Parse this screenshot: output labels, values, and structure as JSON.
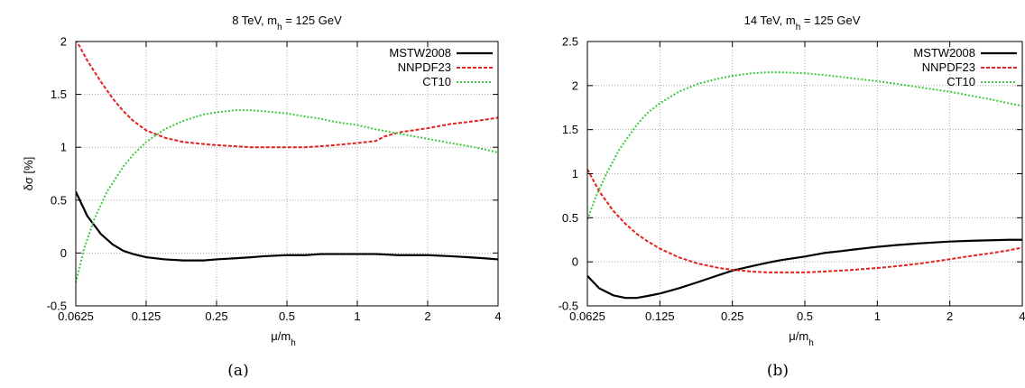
{
  "figures": [
    {
      "caption": "(a)",
      "chart_data": {
        "type": "line",
        "title": "8 TeV, m_h = 125 GeV",
        "title_main": "8 TeV, m",
        "title_sub": "h",
        "title_tail": " = 125 GeV",
        "xlabel_main": "μ/m",
        "xlabel_sub": "h",
        "ylabel": "δσ [%]",
        "x_scale": "log2",
        "xlim": [
          0.0625,
          4
        ],
        "ylim": [
          -0.5,
          2
        ],
        "x_ticks": [
          0.0625,
          0.125,
          0.25,
          0.5,
          1,
          2,
          4
        ],
        "x_tick_labels": [
          "0.0625",
          "0.125",
          "0.25",
          "0.5",
          "1",
          "2",
          "4"
        ],
        "y_ticks": [
          -0.5,
          0,
          0.5,
          1,
          1.5,
          2
        ],
        "y_tick_labels": [
          "-0.5",
          "0",
          "0.5",
          "1",
          "1.5",
          "2"
        ],
        "grid": true,
        "legend_position": "top-right",
        "series": [
          {
            "name": "MSTW2008",
            "color": "#000000",
            "dash": "solid",
            "x": [
              0.0625,
              0.07,
              0.08,
              0.09,
              0.1,
              0.11,
              0.125,
              0.15,
              0.18,
              0.22,
              0.25,
              0.3,
              0.35,
              0.4,
              0.5,
              0.6,
              0.7,
              0.8,
              1,
              1.2,
              1.5,
              2,
              2.5,
              3,
              3.5,
              4
            ],
            "y": [
              0.58,
              0.35,
              0.18,
              0.08,
              0.02,
              -0.01,
              -0.04,
              -0.06,
              -0.07,
              -0.07,
              -0.06,
              -0.05,
              -0.04,
              -0.03,
              -0.02,
              -0.02,
              -0.01,
              -0.01,
              -0.01,
              -0.01,
              -0.02,
              -0.02,
              -0.03,
              -0.04,
              -0.05,
              -0.06
            ]
          },
          {
            "name": "NNPDF23",
            "color": "#e3231f",
            "dash": "dashed",
            "x": [
              0.0625,
              0.07,
              0.08,
              0.09,
              0.1,
              0.11,
              0.125,
              0.15,
              0.18,
              0.22,
              0.25,
              0.3,
              0.35,
              0.4,
              0.5,
              0.6,
              0.7,
              0.8,
              1,
              1.2,
              1.3,
              1.5,
              2,
              2.5,
              3,
              3.5,
              4
            ],
            "y": [
              2.02,
              1.82,
              1.62,
              1.46,
              1.34,
              1.25,
              1.16,
              1.09,
              1.05,
              1.03,
              1.02,
              1.01,
              1.0,
              1.0,
              1.0,
              1.0,
              1.01,
              1.02,
              1.04,
              1.06,
              1.1,
              1.14,
              1.18,
              1.22,
              1.24,
              1.26,
              1.28
            ]
          },
          {
            "name": "CT10",
            "color": "#3ec93e",
            "dash": "dotted",
            "x": [
              0.0625,
              0.068,
              0.075,
              0.085,
              0.1,
              0.11,
              0.125,
              0.15,
              0.18,
              0.22,
              0.25,
              0.3,
              0.35,
              0.4,
              0.5,
              0.6,
              0.7,
              0.8,
              1,
              1.2,
              1.5,
              2,
              2.5,
              3,
              3.5,
              4
            ],
            "y": [
              -0.28,
              0.05,
              0.32,
              0.58,
              0.82,
              0.93,
              1.05,
              1.17,
              1.25,
              1.31,
              1.33,
              1.35,
              1.35,
              1.34,
              1.32,
              1.29,
              1.27,
              1.24,
              1.21,
              1.17,
              1.13,
              1.08,
              1.04,
              1.01,
              0.98,
              0.95
            ]
          }
        ]
      }
    },
    {
      "caption": "(b)",
      "chart_data": {
        "type": "line",
        "title": "14 TeV, m_h = 125 GeV",
        "title_main": "14 TeV, m",
        "title_sub": "h",
        "title_tail": " = 125 GeV",
        "xlabel_main": "μ/m",
        "xlabel_sub": "h",
        "ylabel": "",
        "x_scale": "log2",
        "xlim": [
          0.0625,
          4
        ],
        "ylim": [
          -0.5,
          2.5
        ],
        "x_ticks": [
          0.0625,
          0.125,
          0.25,
          0.5,
          1,
          2,
          4
        ],
        "x_tick_labels": [
          "0.0625",
          "0.125",
          "0.25",
          "0.5",
          "1",
          "2",
          "4"
        ],
        "y_ticks": [
          -0.5,
          0,
          0.5,
          1,
          1.5,
          2,
          2.5
        ],
        "y_tick_labels": [
          "-0.5",
          "0",
          "0.5",
          "1",
          "1.5",
          "2",
          "2.5"
        ],
        "grid": true,
        "legend_position": "top-right",
        "series": [
          {
            "name": "MSTW2008",
            "color": "#000000",
            "dash": "solid",
            "x": [
              0.0625,
              0.07,
              0.08,
              0.09,
              0.1,
              0.11,
              0.125,
              0.15,
              0.18,
              0.22,
              0.25,
              0.3,
              0.35,
              0.4,
              0.5,
              0.6,
              0.7,
              0.8,
              1,
              1.2,
              1.5,
              2,
              2.5,
              3,
              3.5,
              4
            ],
            "y": [
              -0.16,
              -0.3,
              -0.38,
              -0.41,
              -0.41,
              -0.39,
              -0.36,
              -0.3,
              -0.23,
              -0.15,
              -0.1,
              -0.05,
              -0.01,
              0.02,
              0.06,
              0.1,
              0.12,
              0.14,
              0.17,
              0.19,
              0.21,
              0.23,
              0.24,
              0.245,
              0.25,
              0.25
            ]
          },
          {
            "name": "NNPDF23",
            "color": "#e3231f",
            "dash": "dashed",
            "x": [
              0.0625,
              0.07,
              0.08,
              0.09,
              0.1,
              0.11,
              0.125,
              0.15,
              0.18,
              0.22,
              0.25,
              0.3,
              0.35,
              0.4,
              0.5,
              0.6,
              0.7,
              0.8,
              1,
              1.2,
              1.5,
              2,
              2.5,
              3,
              3.5,
              4
            ],
            "y": [
              1.05,
              0.8,
              0.58,
              0.43,
              0.32,
              0.24,
              0.15,
              0.05,
              -0.02,
              -0.07,
              -0.09,
              -0.11,
              -0.12,
              -0.12,
              -0.12,
              -0.11,
              -0.1,
              -0.09,
              -0.07,
              -0.05,
              -0.02,
              0.03,
              0.07,
              0.1,
              0.13,
              0.16
            ]
          },
          {
            "name": "CT10",
            "color": "#3ec93e",
            "dash": "dotted",
            "x": [
              0.0625,
              0.068,
              0.075,
              0.085,
              0.1,
              0.11,
              0.125,
              0.15,
              0.18,
              0.22,
              0.25,
              0.3,
              0.35,
              0.4,
              0.5,
              0.6,
              0.7,
              0.8,
              1,
              1.2,
              1.5,
              2,
              2.5,
              3,
              3.5,
              4
            ],
            "y": [
              0.48,
              0.75,
              1.0,
              1.28,
              1.55,
              1.68,
              1.8,
              1.93,
              2.02,
              2.08,
              2.11,
              2.14,
              2.15,
              2.15,
              2.14,
              2.12,
              2.1,
              2.08,
              2.05,
              2.02,
              1.98,
              1.93,
              1.88,
              1.84,
              1.8,
              1.77
            ]
          }
        ]
      }
    }
  ]
}
